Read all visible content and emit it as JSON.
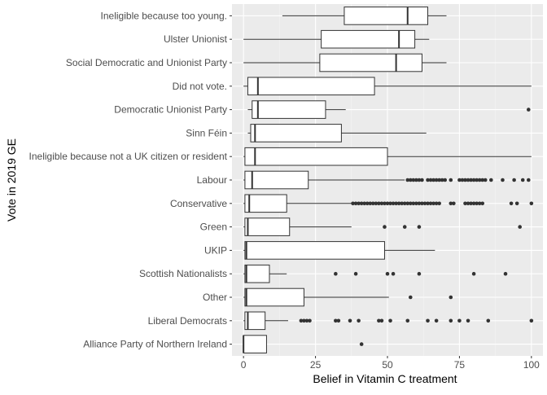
{
  "chart_data": {
    "type": "boxplot",
    "orientation": "horizontal",
    "title": "",
    "xlabel": "Belief in Vitamin C treatment",
    "ylabel": "Vote in 2019 GE",
    "xlim": [
      -4,
      104
    ],
    "xticks": [
      0,
      25,
      50,
      75,
      100
    ],
    "grid": true,
    "legend": "none",
    "categories": [
      "Ineligible because too young.",
      "Ulster Unionist",
      "Social Democratic and Unionist Party",
      "Did not vote.",
      "Democratic Unionist Party",
      "Sinn Féin",
      "Ineligible because not a UK citizen or resident",
      "Labour",
      "Conservative",
      "Green",
      "UKIP",
      "Scottish Nationalists",
      "Other",
      "Liberal Democrats",
      "Alliance Party of Northern Ireland"
    ],
    "boxes": [
      {
        "whisker_low": 13.5,
        "q1": 35,
        "median": 57,
        "q3": 64,
        "whisker_high": 70.5,
        "outliers": []
      },
      {
        "whisker_low": 0,
        "q1": 27,
        "median": 54,
        "q3": 59.5,
        "whisker_high": 64.5,
        "outliers": []
      },
      {
        "whisker_low": 0,
        "q1": 26.5,
        "median": 53,
        "q3": 62,
        "whisker_high": 70.5,
        "outliers": []
      },
      {
        "whisker_low": 0,
        "q1": 1.5,
        "median": 5,
        "q3": 45.5,
        "whisker_high": 100,
        "outliers": []
      },
      {
        "whisker_low": 1.5,
        "q1": 3,
        "median": 5,
        "q3": 28.5,
        "whisker_high": 35.5,
        "outliers": [
          99
        ]
      },
      {
        "whisker_low": 1.5,
        "q1": 2.5,
        "median": 4,
        "q3": 34,
        "whisker_high": 63.5,
        "outliers": []
      },
      {
        "whisker_low": 0,
        "q1": 0.5,
        "median": 4,
        "q3": 50,
        "whisker_high": 100,
        "outliers": []
      },
      {
        "whisker_low": 0,
        "q1": 0.5,
        "median": 3,
        "q3": 22.5,
        "whisker_high": 56,
        "outliers": [
          57,
          58,
          59,
          60,
          61,
          62,
          64,
          65,
          66,
          67,
          68,
          69,
          70,
          72,
          75,
          76,
          77,
          78,
          79,
          80,
          81,
          82,
          83,
          84,
          86,
          90,
          94,
          97,
          99
        ]
      },
      {
        "whisker_low": 0,
        "q1": 0.5,
        "median": 2,
        "q3": 15,
        "whisker_high": 37.5,
        "outliers": [
          38,
          39,
          40,
          41,
          42,
          43,
          44,
          45,
          46,
          47,
          48,
          49,
          50,
          51,
          52,
          53,
          54,
          55,
          56,
          57,
          58,
          59,
          60,
          61,
          62,
          63,
          64,
          65,
          66,
          67,
          68,
          72,
          73,
          77,
          78,
          79,
          80,
          81,
          82,
          83,
          93,
          95,
          100
        ]
      },
      {
        "whisker_low": 0,
        "q1": 0.5,
        "median": 1.5,
        "q3": 16,
        "whisker_high": 37.5,
        "outliers": [
          49,
          56,
          61,
          96
        ]
      },
      {
        "whisker_low": 0,
        "q1": 0.5,
        "median": 1,
        "q3": 49,
        "whisker_high": 66.5,
        "outliers": []
      },
      {
        "whisker_low": 0,
        "q1": 0.5,
        "median": 1,
        "q3": 9,
        "whisker_high": 15,
        "outliers": [
          32,
          39,
          50,
          52,
          61,
          80,
          91
        ]
      },
      {
        "whisker_low": 0,
        "q1": 0.5,
        "median": 1,
        "q3": 21,
        "whisker_high": 50.5,
        "outliers": [
          58,
          72
        ]
      },
      {
        "whisker_low": 0,
        "q1": 0.5,
        "median": 1.5,
        "q3": 7.5,
        "whisker_high": 15.5,
        "outliers": [
          20,
          21,
          22,
          23,
          32,
          33,
          37,
          40,
          47,
          48,
          51,
          57,
          64,
          67,
          72,
          75,
          78,
          85,
          100
        ]
      },
      {
        "whisker_low": 0,
        "q1": 0,
        "median": 0,
        "q3": 8,
        "whisker_high": 8,
        "outliers": [
          41
        ]
      }
    ]
  }
}
